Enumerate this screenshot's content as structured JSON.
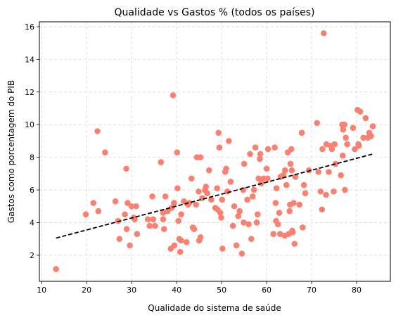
{
  "chart_data": {
    "type": "scatter",
    "title": "Qualidade vs Gastos % (todos os países)",
    "xlabel": "Qualidade do sistema de saúde",
    "ylabel": "Gastos como porcentagem do PIB",
    "xlim": [
      9.5,
      87.5
    ],
    "ylim": [
      0.4,
      16.3
    ],
    "xticks": [
      10,
      20,
      30,
      40,
      50,
      60,
      70,
      80
    ],
    "yticks": [
      2,
      4,
      6,
      8,
      10,
      12,
      14,
      16
    ],
    "grid": true,
    "point_color": "#fa8072",
    "trend_color": "#000000",
    "trendline": {
      "x": [
        13.2,
        83.6
      ],
      "y": [
        3.05,
        8.2
      ]
    },
    "points": [
      [
        13.2,
        1.15
      ],
      [
        19.8,
        4.5
      ],
      [
        21.5,
        5.2
      ],
      [
        22.4,
        9.6
      ],
      [
        22.6,
        4.7
      ],
      [
        24.1,
        8.3
      ],
      [
        26.4,
        5.3
      ],
      [
        27.0,
        4.1
      ],
      [
        27.3,
        3.0
      ],
      [
        28.5,
        4.5
      ],
      [
        28.8,
        7.3
      ],
      [
        28.9,
        3.6
      ],
      [
        29.1,
        5.2
      ],
      [
        29.6,
        2.6
      ],
      [
        30.0,
        5.0
      ],
      [
        30.5,
        4.3
      ],
      [
        30.7,
        4.2
      ],
      [
        31.0,
        5.0
      ],
      [
        31.2,
        3.3
      ],
      [
        33.6,
        4.2
      ],
      [
        34.0,
        3.8
      ],
      [
        34.6,
        5.6
      ],
      [
        34.8,
        4.2
      ],
      [
        35.2,
        3.8
      ],
      [
        36.5,
        7.7
      ],
      [
        37.0,
        4.6
      ],
      [
        37.0,
        4.2
      ],
      [
        37.2,
        3.6
      ],
      [
        37.5,
        5.6
      ],
      [
        38.0,
        4.7
      ],
      [
        38.7,
        2.4
      ],
      [
        38.9,
        4.9
      ],
      [
        39.2,
        11.8
      ],
      [
        39.4,
        5.2
      ],
      [
        39.5,
        2.6
      ],
      [
        40.1,
        8.3
      ],
      [
        40.2,
        6.1
      ],
      [
        40.4,
        4.1
      ],
      [
        40.6,
        3.0
      ],
      [
        40.8,
        2.2
      ],
      [
        41.0,
        2.9
      ],
      [
        41.0,
        4.5
      ],
      [
        41.6,
        5.3
      ],
      [
        42.2,
        2.8
      ],
      [
        42.5,
        5.1
      ],
      [
        42.8,
        5.2
      ],
      [
        43.3,
        6.7
      ],
      [
        43.6,
        3.7
      ],
      [
        43.9,
        3.6
      ],
      [
        44.3,
        5.1
      ],
      [
        44.5,
        8.0
      ],
      [
        44.9,
        5.9
      ],
      [
        45.0,
        2.9
      ],
      [
        45.3,
        3.1
      ],
      [
        45.3,
        8.0
      ],
      [
        45.7,
        5.5
      ],
      [
        46.3,
        6.0
      ],
      [
        46.5,
        6.2
      ],
      [
        46.8,
        5.8
      ],
      [
        47.2,
        7.2
      ],
      [
        47.7,
        5.4
      ],
      [
        48.6,
        4.9
      ],
      [
        49.0,
        6.1
      ],
      [
        49.1,
        4.8
      ],
      [
        49.3,
        9.5
      ],
      [
        49.5,
        8.6
      ],
      [
        49.7,
        4.6
      ],
      [
        49.9,
        4.3
      ],
      [
        50.1,
        5.4
      ],
      [
        50.2,
        2.4
      ],
      [
        50.8,
        7.1
      ],
      [
        51.0,
        7.3
      ],
      [
        51.3,
        5.9
      ],
      [
        51.6,
        9.0
      ],
      [
        52.0,
        6.5
      ],
      [
        52.5,
        3.8
      ],
      [
        52.8,
        5.0
      ],
      [
        53.3,
        2.6
      ],
      [
        53.7,
        4.4
      ],
      [
        54.0,
        4.7
      ],
      [
        54.5,
        2.1
      ],
      [
        54.8,
        6.0
      ],
      [
        54.9,
        4.0
      ],
      [
        55.0,
        7.6
      ],
      [
        55.7,
        5.4
      ],
      [
        56.0,
        3.9
      ],
      [
        56.3,
        8.2
      ],
      [
        56.6,
        3.0
      ],
      [
        56.9,
        5.6
      ],
      [
        57.2,
        6.0
      ],
      [
        57.5,
        8.6
      ],
      [
        57.8,
        4.0
      ],
      [
        58.0,
        4.5
      ],
      [
        58.2,
        6.7
      ],
      [
        58.5,
        7.9
      ],
      [
        58.6,
        8.2
      ],
      [
        58.8,
        6.4
      ],
      [
        59.3,
        6.7
      ],
      [
        60.0,
        7.3
      ],
      [
        60.2,
        6.7
      ],
      [
        60.3,
        8.5
      ],
      [
        61.5,
        3.3
      ],
      [
        61.8,
        8.6
      ],
      [
        62.0,
        5.2
      ],
      [
        62.1,
        4.1
      ],
      [
        62.2,
        6.1
      ],
      [
        62.5,
        3.9
      ],
      [
        62.8,
        4.6
      ],
      [
        63.0,
        3.3
      ],
      [
        63.1,
        6.8
      ],
      [
        63.7,
        6.9
      ],
      [
        64.0,
        3.2
      ],
      [
        64.1,
        7.2
      ],
      [
        64.4,
        6.3
      ],
      [
        64.7,
        8.3
      ],
      [
        64.9,
        3.3
      ],
      [
        65.1,
        4.7
      ],
      [
        65.2,
        5.1
      ],
      [
        65.3,
        7.6
      ],
      [
        65.5,
        8.5
      ],
      [
        65.6,
        7.2
      ],
      [
        65.7,
        3.5
      ],
      [
        65.8,
        3.4
      ],
      [
        66.0,
        5.2
      ],
      [
        66.2,
        2.7
      ],
      [
        66.4,
        6.8
      ],
      [
        67.3,
        5.1
      ],
      [
        67.8,
        9.5
      ],
      [
        68.0,
        3.7
      ],
      [
        68.3,
        6.3
      ],
      [
        68.6,
        5.8
      ],
      [
        69.4,
        7.2
      ],
      [
        71.2,
        10.1
      ],
      [
        71.5,
        7.1
      ],
      [
        72.0,
        5.9
      ],
      [
        72.3,
        4.8
      ],
      [
        72.4,
        8.5
      ],
      [
        72.7,
        15.6
      ],
      [
        73.2,
        5.7
      ],
      [
        73.3,
        8.8
      ],
      [
        73.8,
        7.1
      ],
      [
        74.3,
        8.7
      ],
      [
        74.5,
        8.5
      ],
      [
        74.9,
        5.9
      ],
      [
        75.1,
        8.8
      ],
      [
        75.3,
        7.6
      ],
      [
        76.5,
        6.9
      ],
      [
        76.8,
        10.0
      ],
      [
        76.9,
        8.1
      ],
      [
        77.0,
        9.7
      ],
      [
        77.3,
        10.0
      ],
      [
        77.4,
        6.0
      ],
      [
        77.6,
        9.2
      ],
      [
        77.9,
        8.8
      ],
      [
        79.2,
        9.8
      ],
      [
        79.6,
        8.5
      ],
      [
        80.2,
        10.9
      ],
      [
        80.4,
        8.8
      ],
      [
        80.5,
        8.7
      ],
      [
        80.8,
        10.8
      ],
      [
        81.5,
        9.2
      ],
      [
        82.0,
        10.4
      ],
      [
        82.5,
        9.2
      ],
      [
        82.8,
        9.5
      ],
      [
        83.2,
        9.3
      ],
      [
        83.6,
        9.9
      ]
    ]
  }
}
